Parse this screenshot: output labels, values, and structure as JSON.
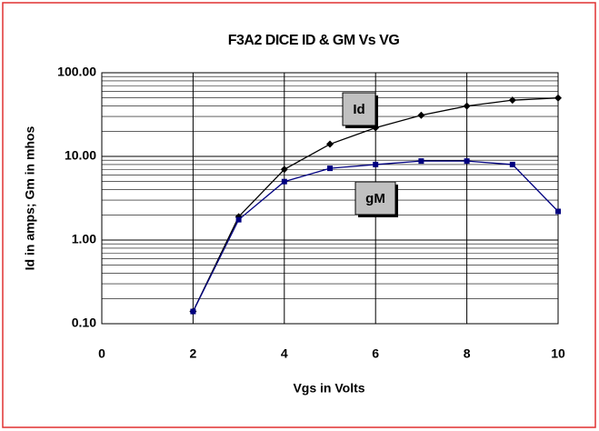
{
  "chart_data": {
    "type": "line",
    "title": "F3A2 DICE ID & GM Vs VG",
    "xlabel": "Vgs in Volts",
    "ylabel": "Id in amps;  Gm in mhos",
    "xlim": [
      0,
      10
    ],
    "xticks": [
      0,
      2,
      4,
      6,
      8,
      10
    ],
    "ylim": [
      0.1,
      100
    ],
    "yticks": [
      {
        "value": 0.1,
        "label": "0.10"
      },
      {
        "value": 1,
        "label": "1.00"
      },
      {
        "value": 10,
        "label": "10.00"
      },
      {
        "value": 100,
        "label": "100.00"
      }
    ],
    "log_y": true,
    "grid": true,
    "minor_grid": true,
    "series": [
      {
        "name": "Id",
        "color": "#000000",
        "marker": "diamond",
        "x": [
          2,
          3,
          4,
          5,
          6,
          7,
          8,
          9,
          10
        ],
        "values": [
          0.14,
          1.9,
          7,
          14,
          22,
          31,
          40,
          47,
          50
        ]
      },
      {
        "name": "gM",
        "color": "#000080",
        "marker": "square",
        "x": [
          2,
          3,
          4,
          5,
          6,
          7,
          8,
          9,
          10
        ],
        "values": [
          0.14,
          1.75,
          5,
          7.2,
          8,
          8.8,
          8.8,
          8,
          2.2
        ]
      }
    ]
  }
}
